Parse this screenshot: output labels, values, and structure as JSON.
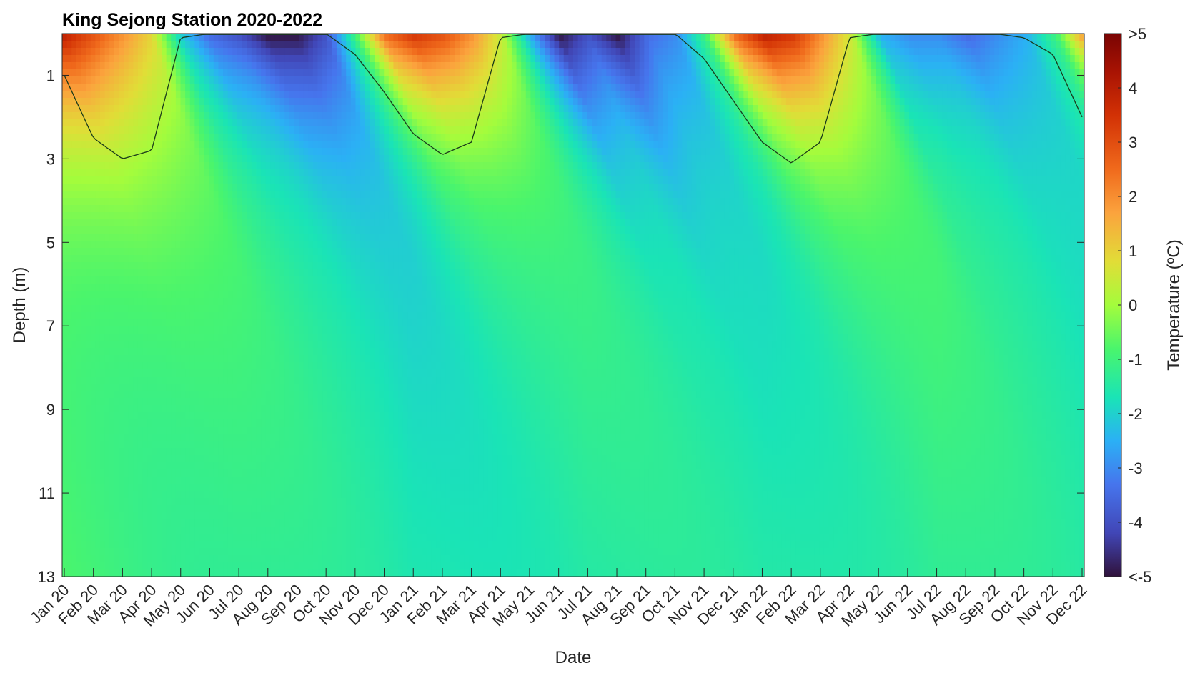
{
  "chart_data": {
    "type": "heatmap",
    "title": "King Sejong Station 2020-2022",
    "xlabel": "Date",
    "ylabel": "Depth (m)",
    "colorbar_label": "Temperature (ºC)",
    "x_range": [
      "2020-01-01",
      "2022-12-31"
    ],
    "y_range": [
      0,
      13
    ],
    "y_reversed": true,
    "y_ticks": [
      1,
      3,
      5,
      7,
      9,
      11,
      13
    ],
    "x_tick_labels": [
      "Jan 20",
      "Feb 20",
      "Mar 20",
      "Apr 20",
      "May 20",
      "Jun 20",
      "Jul 20",
      "Aug 20",
      "Sep 20",
      "Oct 20",
      "Nov 20",
      "Dec 20",
      "Jan 21",
      "Feb 21",
      "Mar 21",
      "Apr 21",
      "May 21",
      "Jun 21",
      "Jul 21",
      "Aug 21",
      "Sep 21",
      "Oct 21",
      "Nov 21",
      "Dec 21",
      "Jan 22",
      "Feb 22",
      "Mar 22",
      "Apr 22",
      "May 22",
      "Jun 22",
      "Jul 22",
      "Aug 22",
      "Sep 22",
      "Oct 22",
      "Nov 22",
      "Dec 22"
    ],
    "colorbar_range": [
      -5,
      5
    ],
    "colorbar_ticks": [
      5,
      4,
      3,
      2,
      1,
      0,
      -1,
      -2,
      -3,
      -4,
      -5
    ],
    "colorbar_tick_labels": [
      ">5",
      "4",
      "3",
      "2",
      "1",
      "0",
      "-1",
      "-2",
      "-3",
      "-4",
      "<-5"
    ],
    "colormap": "turbo",
    "contour_level": 0,
    "zero_isotherm_depth_profile": {
      "months": [
        "Jan 20",
        "Feb 20",
        "Mar 20",
        "Apr 20",
        "May 20",
        "Jun 20",
        "Jul 20",
        "Aug 20",
        "Sep 20",
        "Oct 20",
        "Nov 20",
        "Dec 20",
        "Jan 21",
        "Feb 21",
        "Mar 21",
        "Apr 21",
        "May 21",
        "Jun 21",
        "Jul 21",
        "Aug 21",
        "Sep 21",
        "Oct 21",
        "Nov 21",
        "Dec 21",
        "Jan 22",
        "Feb 22",
        "Mar 22",
        "Apr 22",
        "May 22",
        "Jun 22",
        "Jul 22",
        "Aug 22",
        "Sep 22",
        "Oct 22",
        "Nov 22",
        "Dec 22"
      ],
      "depth_m": [
        1.0,
        2.5,
        3.0,
        2.8,
        0.1,
        0.0,
        0.0,
        0.0,
        0.0,
        0.0,
        0.5,
        1.4,
        2.4,
        2.9,
        2.6,
        0.1,
        0.0,
        0.0,
        0.0,
        0.0,
        0.0,
        0.0,
        0.6,
        1.6,
        2.6,
        3.1,
        2.6,
        0.1,
        0.0,
        0.0,
        0.0,
        0.0,
        0.0,
        0.1,
        0.5,
        2.0
      ]
    },
    "surface_temperature_c": {
      "months": [
        "Jan 20",
        "Feb 20",
        "Mar 20",
        "Apr 20",
        "May 20",
        "Jun 20",
        "Jul 20",
        "Aug 20",
        "Sep 20",
        "Oct 20",
        "Nov 20",
        "Dec 20",
        "Jan 21",
        "Feb 21",
        "Mar 21",
        "Apr 21",
        "May 21",
        "Jun 21",
        "Jul 21",
        "Aug 21",
        "Sep 21",
        "Oct 21",
        "Nov 21",
        "Dec 21",
        "Jan 22",
        "Feb 22",
        "Mar 22",
        "Apr 22",
        "May 22",
        "Jun 22",
        "Jul 22",
        "Aug 22",
        "Sep 22",
        "Oct 22",
        "Nov 22",
        "Dec 22"
      ],
      "values": [
        4.0,
        3.0,
        2.0,
        1.0,
        -2.0,
        -3.5,
        -4.0,
        -5.0,
        -5.0,
        -4.0,
        -1.0,
        2.5,
        3.5,
        3.0,
        2.0,
        0.5,
        -2.5,
        -5.0,
        -4.0,
        -5.0,
        -3.5,
        -3.0,
        -1.0,
        2.5,
        4.0,
        3.5,
        2.0,
        0.5,
        -2.5,
        -3.0,
        -3.0,
        -3.5,
        -3.0,
        -2.5,
        -1.0,
        2.0
      ]
    },
    "deep_temperature_c": {
      "depth_m": 13,
      "months": [
        "Jan 20",
        "Jul 20",
        "Jan 21",
        "Jul 21",
        "Jan 22",
        "Jul 22",
        "Dec 22"
      ],
      "values": [
        -0.9,
        -1.2,
        -1.7,
        -1.4,
        -1.6,
        -1.2,
        -1.6
      ]
    }
  }
}
